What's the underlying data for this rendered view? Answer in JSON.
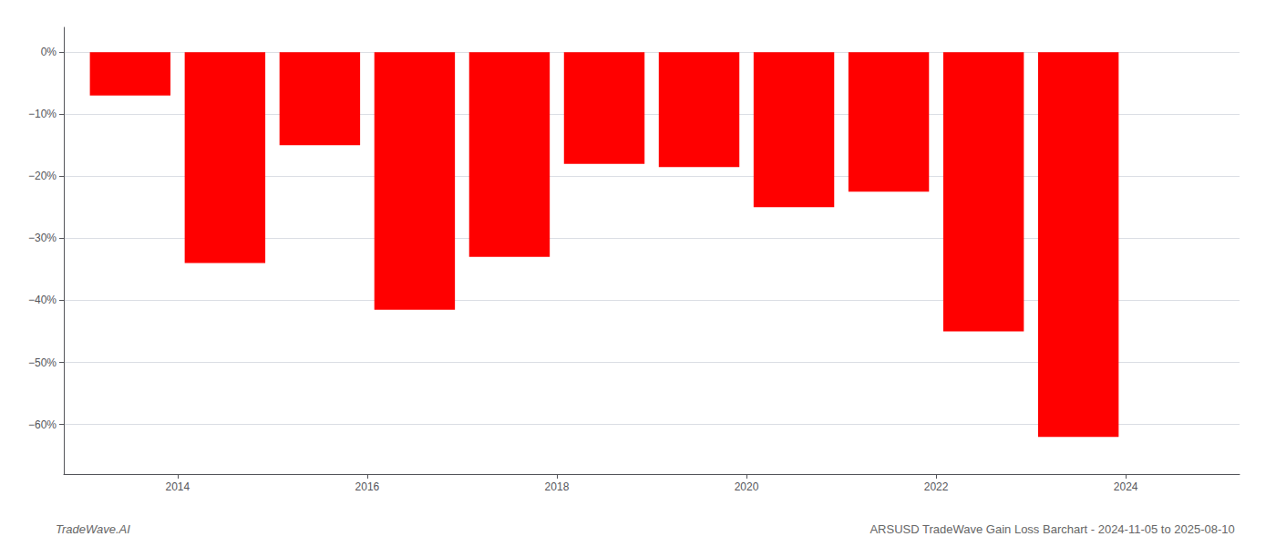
{
  "chart_data": {
    "type": "bar",
    "title": "ARSUSD TradeWave Gain Loss Barchart - 2024-11-05 to 2025-08-10",
    "annotations": [
      "TradeWave.AI"
    ],
    "x": [
      2013.5,
      2014.5,
      2015.5,
      2016.5,
      2017.5,
      2018.5,
      2019.5,
      2020.5,
      2021.5,
      2022.5,
      2023.5
    ],
    "values": [
      -7.0,
      -34.0,
      -15.0,
      -41.5,
      -33.0,
      -18.0,
      -18.5,
      -25.0,
      -22.5,
      -45.0,
      -62.0
    ],
    "color": "#ff0000",
    "xlim": [
      2012.8,
      2025.2
    ],
    "xticks": [
      2014,
      2016,
      2018,
      2020,
      2022,
      2024
    ],
    "ylim": [
      -68,
      4
    ],
    "yticks": [
      {
        "value": 0,
        "label": "0%"
      },
      {
        "value": -10,
        "label": "−10%"
      },
      {
        "value": -20,
        "label": "−20%"
      },
      {
        "value": -30,
        "label": "−30%"
      },
      {
        "value": -40,
        "label": "−40%"
      },
      {
        "value": -50,
        "label": "−50%"
      },
      {
        "value": -60,
        "label": "−60%"
      }
    ],
    "grid": true
  }
}
